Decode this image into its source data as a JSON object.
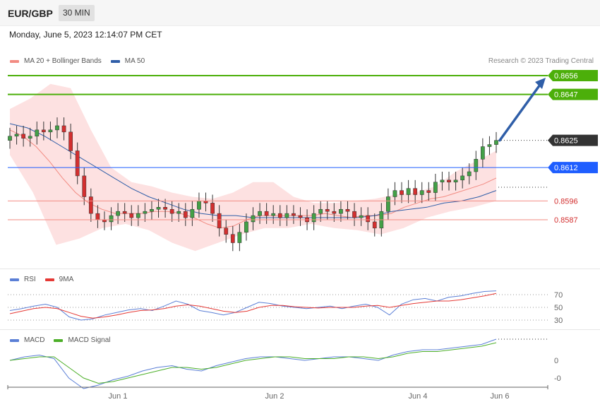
{
  "header": {
    "symbol": "EUR/GBP",
    "timeframe": "30 MIN",
    "datetime": "Monday, June 5, 2023 12:14:07 PM CET"
  },
  "main_legend": [
    {
      "label": "MA 20 + Bollinger Bands",
      "color": "#f28b82"
    },
    {
      "label": "MA 50",
      "color": "#2f5ea8"
    }
  ],
  "copyright": "Research © 2023 Trading Central",
  "rsi_legend": [
    {
      "label": "RSI",
      "color": "#5b7fd6"
    },
    {
      "label": "9MA",
      "color": "#e53935"
    }
  ],
  "macd_legend": [
    {
      "label": "MACD",
      "color": "#5b7fd6"
    },
    {
      "label": "MACD Signal",
      "color": "#4caf28"
    }
  ],
  "chart_data": {
    "type": "candlestick",
    "instrument": "EUR/GBP",
    "interval": "30 MIN",
    "x_tick_labels": [
      "Jun 1",
      "Jun 2",
      "Jun 4",
      "Jun 6"
    ],
    "price_levels": [
      {
        "value": 0.8656,
        "label": "0.8656",
        "style": "green-line-tag",
        "color": "#4caf0a"
      },
      {
        "value": 0.8647,
        "label": "0.8647",
        "style": "green-line-tag",
        "color": "#4caf0a"
      },
      {
        "value": 0.8625,
        "label": "0.8625",
        "style": "current-price-tag",
        "color": "#333333"
      },
      {
        "value": 0.8612,
        "label": "0.8612",
        "style": "blue-line-tag",
        "color": "#1f5eff"
      },
      {
        "value": 0.8596,
        "label": "0.8596",
        "style": "red-line-text",
        "color": "#d32f2f"
      },
      {
        "value": 0.8587,
        "label": "0.8587",
        "style": "red-line-text",
        "color": "#d32f2f"
      }
    ],
    "forecast_arrow": {
      "from": 0.8625,
      "to": 0.8656
    },
    "close": [
      0.8627,
      0.8628,
      0.8626,
      0.8627,
      0.863,
      0.8629,
      0.863,
      0.8632,
      0.8629,
      0.862,
      0.8608,
      0.8598,
      0.859,
      0.8587,
      0.8586,
      0.8589,
      0.8591,
      0.859,
      0.8588,
      0.859,
      0.8591,
      0.8592,
      0.8593,
      0.8592,
      0.859,
      0.8591,
      0.8588,
      0.8592,
      0.8596,
      0.8595,
      0.859,
      0.8583,
      0.858,
      0.8576,
      0.8581,
      0.8586,
      0.8589,
      0.8591,
      0.8589,
      0.859,
      0.8588,
      0.859,
      0.8589,
      0.8588,
      0.8586,
      0.859,
      0.8592,
      0.8591,
      0.859,
      0.8592,
      0.8591,
      0.8588,
      0.8589,
      0.8586,
      0.8583,
      0.8591,
      0.8598,
      0.8601,
      0.8599,
      0.8602,
      0.8599,
      0.8601,
      0.86,
      0.8605,
      0.8606,
      0.8605,
      0.8606,
      0.8608,
      0.861,
      0.8616,
      0.8622,
      0.8623,
      0.8625
    ],
    "ma20": [
      0.863,
      0.8627,
      0.8622,
      0.8615,
      0.8607,
      0.86,
      0.8595,
      0.8592,
      0.859,
      0.859,
      0.859,
      0.8591,
      0.8591,
      0.859,
      0.8588,
      0.8585,
      0.8583,
      0.8584,
      0.8587,
      0.8589,
      0.8589,
      0.8589,
      0.8589,
      0.8589,
      0.859,
      0.8589,
      0.8588,
      0.8589,
      0.8589,
      0.859,
      0.8593,
      0.8595,
      0.8597,
      0.8598,
      0.86,
      0.8602,
      0.8604,
      0.8607
    ],
    "ma50": [
      0.8633,
      0.8631,
      0.8627,
      0.8622,
      0.8617,
      0.8612,
      0.8607,
      0.8602,
      0.8598,
      0.8595,
      0.8592,
      0.859,
      0.8589,
      0.8589,
      0.8588,
      0.8588,
      0.8588,
      0.8588,
      0.8588,
      0.8588,
      0.8588,
      0.8589,
      0.8591,
      0.8592,
      0.8593,
      0.8595,
      0.8596,
      0.8598,
      0.8601
    ],
    "bollinger_upper": [
      0.864,
      0.8645,
      0.8652,
      0.865,
      0.863,
      0.8612,
      0.8605,
      0.8603,
      0.86,
      0.8598,
      0.8597,
      0.86,
      0.8605,
      0.8605,
      0.8598,
      0.8595,
      0.8595,
      0.8596,
      0.8597,
      0.8599,
      0.86,
      0.8603,
      0.861,
      0.8615,
      0.862
    ],
    "bollinger_lower": [
      0.8618,
      0.86,
      0.8575,
      0.8578,
      0.8583,
      0.8585,
      0.8582,
      0.8576,
      0.8572,
      0.8576,
      0.858,
      0.8583,
      0.8583,
      0.8585,
      0.8583,
      0.8582,
      0.858,
      0.8583,
      0.8588,
      0.8591,
      0.8593,
      0.8596
    ],
    "rsi": {
      "y_ticks": [
        70,
        50,
        30
      ],
      "rsi_values": [
        45,
        48,
        52,
        55,
        50,
        35,
        30,
        32,
        38,
        42,
        46,
        48,
        45,
        52,
        60,
        55,
        45,
        42,
        38,
        42,
        50,
        58,
        56,
        52,
        50,
        48,
        50,
        52,
        48,
        52,
        55,
        50,
        38,
        55,
        62,
        64,
        60,
        66,
        68,
        72,
        75,
        76
      ],
      "ma9_values": [
        40,
        44,
        48,
        50,
        48,
        42,
        36,
        33,
        35,
        38,
        42,
        45,
        46,
        48,
        52,
        54,
        52,
        48,
        44,
        42,
        44,
        50,
        53,
        53,
        51,
        50,
        49,
        50,
        50,
        50,
        52,
        53,
        50,
        53,
        56,
        58,
        60,
        60,
        62,
        65,
        68,
        72
      ]
    },
    "macd": {
      "y_ticks": [
        "0",
        "-0"
      ],
      "macd_values": [
        0.0,
        0.0002,
        0.0003,
        0.0001,
        -0.001,
        -0.0016,
        -0.0014,
        -0.0011,
        -0.0009,
        -0.0006,
        -0.0004,
        -0.0003,
        -0.0005,
        -0.0006,
        -0.0003,
        -0.0001,
        0.0001,
        0.0002,
        0.0002,
        0.0001,
        0.0,
        0.0001,
        0.0002,
        0.0002,
        0.0001,
        0.0,
        0.0003,
        0.0005,
        0.0006,
        0.0006,
        0.0007,
        0.0008,
        0.0009,
        0.0012
      ],
      "signal_values": [
        0.0,
        0.0001,
        0.0002,
        0.0002,
        -0.0004,
        -0.001,
        -0.0013,
        -0.0012,
        -0.001,
        -0.0008,
        -0.0006,
        -0.0004,
        -0.0004,
        -0.0005,
        -0.0004,
        -0.0002,
        0.0,
        0.0001,
        0.0002,
        0.0002,
        0.0001,
        0.0001,
        0.0001,
        0.0002,
        0.0002,
        0.0001,
        0.0002,
        0.0004,
        0.0005,
        0.0005,
        0.0006,
        0.0007,
        0.0008,
        0.001
      ]
    }
  }
}
